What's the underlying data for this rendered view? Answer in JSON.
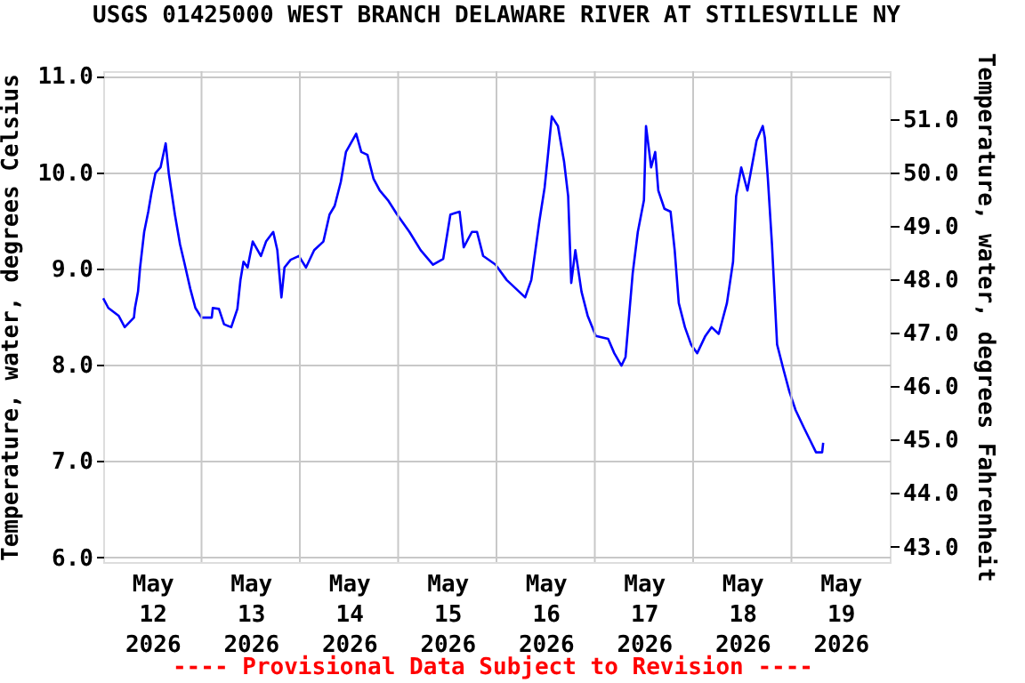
{
  "chart_data": {
    "type": "line",
    "title": "USGS 01425000 WEST BRANCH DELAWARE RIVER AT STILESVILLE NY",
    "ylabel": "Temperature, water, degrees Celsius",
    "y2label": "Temperature, water, degrees Fahrenheit",
    "annotations": [
      "---- Provisional Data Subject to Revision ----"
    ],
    "x": [
      "2026-05-12T00:00",
      "2026-05-12T01:15",
      "2026-05-12T03:45",
      "2026-05-12T05:15",
      "2026-05-12T07:30",
      "2026-05-12T07:45",
      "2026-05-12T08:30",
      "2026-05-12T09:00",
      "2026-05-12T10:00",
      "2026-05-12T11:00",
      "2026-05-12T11:45",
      "2026-05-12T12:45",
      "2026-05-12T14:00",
      "2026-05-12T15:15",
      "2026-05-12T16:00",
      "2026-05-12T17:30",
      "2026-05-12T18:45",
      "2026-05-12T19:45",
      "2026-05-12T21:15",
      "2026-05-12T22:30",
      "2026-05-13T00:00",
      "2026-05-13T02:30",
      "2026-05-13T02:45",
      "2026-05-13T04:15",
      "2026-05-13T05:30",
      "2026-05-13T07:15",
      "2026-05-13T08:45",
      "2026-05-13T09:30",
      "2026-05-13T10:15",
      "2026-05-13T11:15",
      "2026-05-13T12:30",
      "2026-05-13T14:30",
      "2026-05-13T15:45",
      "2026-05-13T17:30",
      "2026-05-13T18:30",
      "2026-05-13T19:30",
      "2026-05-13T20:15",
      "2026-05-13T21:45",
      "2026-05-13T23:45",
      "2026-05-14T01:30",
      "2026-05-14T03:30",
      "2026-05-14T05:45",
      "2026-05-14T07:15",
      "2026-05-14T08:30",
      "2026-05-14T10:00",
      "2026-05-14T11:15",
      "2026-05-14T13:45",
      "2026-05-14T15:00",
      "2026-05-14T16:30",
      "2026-05-14T18:00",
      "2026-05-14T19:30",
      "2026-05-14T21:30",
      "2026-05-14T23:45",
      "2026-05-15T02:45",
      "2026-05-15T05:30",
      "2026-05-15T08:30",
      "2026-05-15T11:00",
      "2026-05-15T12:45",
      "2026-05-15T15:00",
      "2026-05-15T16:00",
      "2026-05-15T18:00",
      "2026-05-15T19:15",
      "2026-05-15T20:45",
      "2026-05-15T23:45",
      "2026-05-16T02:30",
      "2026-05-16T04:45",
      "2026-05-16T07:00",
      "2026-05-16T08:30",
      "2026-05-16T09:30",
      "2026-05-16T10:30",
      "2026-05-16T11:45",
      "2026-05-16T12:30",
      "2026-05-16T13:30",
      "2026-05-16T15:00",
      "2026-05-16T16:30",
      "2026-05-16T17:30",
      "2026-05-16T18:15",
      "2026-05-16T19:15",
      "2026-05-16T20:45",
      "2026-05-16T22:15",
      "2026-05-17T00:15",
      "2026-05-17T03:15",
      "2026-05-17T04:45",
      "2026-05-17T06:30",
      "2026-05-17T07:30",
      "2026-05-17T08:15",
      "2026-05-17T09:15",
      "2026-05-17T10:30",
      "2026-05-17T12:00",
      "2026-05-17T12:30",
      "2026-05-17T13:45",
      "2026-05-17T14:45",
      "2026-05-17T15:30",
      "2026-05-17T17:00",
      "2026-05-17T18:30",
      "2026-05-17T19:30",
      "2026-05-17T20:30",
      "2026-05-17T22:00",
      "2026-05-17T23:30",
      "2026-05-18T01:00",
      "2026-05-18T03:00",
      "2026-05-18T04:30",
      "2026-05-18T06:15",
      "2026-05-18T08:15",
      "2026-05-18T09:45",
      "2026-05-18T10:30",
      "2026-05-18T11:45",
      "2026-05-18T13:15",
      "2026-05-18T15:30",
      "2026-05-18T17:00",
      "2026-05-18T17:30",
      "2026-05-18T18:15",
      "2026-05-18T19:15",
      "2026-05-18T20:30",
      "2026-05-18T22:00",
      "2026-05-18T23:30",
      "2026-05-19T01:00",
      "2026-05-19T03:00",
      "2026-05-19T04:30",
      "2026-05-19T06:00",
      "2026-05-19T07:30",
      "2026-05-19T07:45"
    ],
    "series": [
      {
        "color": "#0000ff",
        "values": [
          8.69,
          8.59,
          8.51,
          8.39,
          8.49,
          8.59,
          8.76,
          9.01,
          9.38,
          9.59,
          9.78,
          9.99,
          10.05,
          10.3,
          9.99,
          9.56,
          9.25,
          9.07,
          8.79,
          8.59,
          8.49,
          8.49,
          8.59,
          8.58,
          8.42,
          8.39,
          8.58,
          8.88,
          9.07,
          9.01,
          9.28,
          9.13,
          9.28,
          9.38,
          9.19,
          8.7,
          9.01,
          9.09,
          9.13,
          9.01,
          9.19,
          9.28,
          9.56,
          9.65,
          9.9,
          10.21,
          10.4,
          10.21,
          10.18,
          9.93,
          9.81,
          9.71,
          9.56,
          9.38,
          9.19,
          9.04,
          9.1,
          9.56,
          9.59,
          9.22,
          9.38,
          9.38,
          9.13,
          9.04,
          8.88,
          8.79,
          8.7,
          8.88,
          9.19,
          9.5,
          9.84,
          10.15,
          10.58,
          10.48,
          10.11,
          9.75,
          8.85,
          9.19,
          8.76,
          8.51,
          8.3,
          8.27,
          8.12,
          7.99,
          8.08,
          8.45,
          8.95,
          9.38,
          9.71,
          10.48,
          10.05,
          10.21,
          9.81,
          9.62,
          9.59,
          9.19,
          8.64,
          8.39,
          8.21,
          8.12,
          8.3,
          8.39,
          8.32,
          8.64,
          9.07,
          9.75,
          10.05,
          9.81,
          10.33,
          10.48,
          10.36,
          9.93,
          9.25,
          8.21,
          7.96,
          7.72,
          7.53,
          7.35,
          7.22,
          7.09,
          7.09,
          7.19
        ]
      }
    ],
    "xlim": [
      "2026-05-12T00:00",
      "2026-05-20T00:00"
    ],
    "xticks": [
      {
        "value": "2026-05-12T12:00",
        "label": "May\n12\n2026"
      },
      {
        "value": "2026-05-13T00:00",
        "label": null
      },
      {
        "value": "2026-05-13T12:00",
        "label": "May\n13\n2026"
      },
      {
        "value": "2026-05-14T00:00",
        "label": null
      },
      {
        "value": "2026-05-14T12:00",
        "label": "May\n14\n2026"
      },
      {
        "value": "2026-05-15T00:00",
        "label": null
      },
      {
        "value": "2026-05-15T12:00",
        "label": "May\n15\n2026"
      },
      {
        "value": "2026-05-16T00:00",
        "label": null
      },
      {
        "value": "2026-05-16T12:00",
        "label": "May\n16\n2026"
      },
      {
        "value": "2026-05-17T00:00",
        "label": null
      },
      {
        "value": "2026-05-17T12:00",
        "label": "May\n17\n2026"
      },
      {
        "value": "2026-05-18T00:00",
        "label": null
      },
      {
        "value": "2026-05-18T12:00",
        "label": "May\n18\n2026"
      },
      {
        "value": "2026-05-19T00:00",
        "label": null
      },
      {
        "value": "2026-05-19T12:00",
        "label": "May\n19\n2026"
      }
    ],
    "ylim": [
      5.95,
      11.05
    ],
    "yticks": [
      {
        "value": 6,
        "label": "6.0"
      },
      {
        "value": 7,
        "label": "7.0"
      },
      {
        "value": 8,
        "label": "8.0"
      },
      {
        "value": 9,
        "label": "9.0"
      },
      {
        "value": 10,
        "label": "10.0"
      },
      {
        "value": 11,
        "label": "11.0"
      }
    ],
    "y2lim": [
      42.71,
      51.89
    ],
    "y2ticks": [
      {
        "value": 43,
        "label": "43.0"
      },
      {
        "value": 44,
        "label": "44.0"
      },
      {
        "value": 45,
        "label": "45.0"
      },
      {
        "value": 46,
        "label": "46.0"
      },
      {
        "value": 47,
        "label": "47.0"
      },
      {
        "value": 48,
        "label": "48.0"
      },
      {
        "value": 49,
        "label": "49.0"
      },
      {
        "value": 50,
        "label": "50.0"
      },
      {
        "value": 51,
        "label": "51.0"
      }
    ],
    "grid": true,
    "marker": "none",
    "line_style": "solid"
  }
}
